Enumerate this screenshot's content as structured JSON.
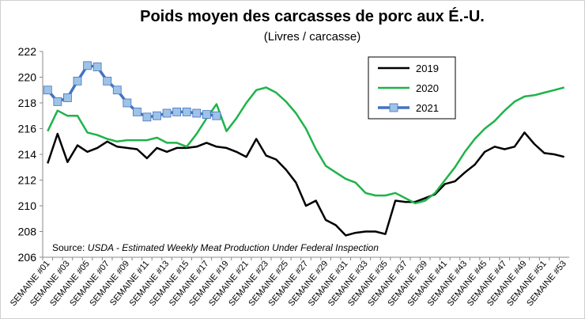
{
  "chart_data": {
    "type": "line",
    "title": "Poids moyen des carcasses de porc aux É.-U.",
    "subtitle": "(Livres / carcasse)",
    "source_label": "Source:",
    "source": "USDA - Estimated Weekly Meat Production Under Federal Inspection",
    "categories": [
      "SEMAINE #01",
      null,
      "SEMAINE #03",
      null,
      "SEMAINE #05",
      null,
      "SEMAINE #07",
      null,
      "SEMAINE #09",
      null,
      "SEMAINE #11",
      null,
      "SEMAINE #13",
      null,
      "SEMAINE #15",
      null,
      "SEMAINE #17",
      null,
      "SEMAINE #19",
      null,
      "SEMAINE #21",
      null,
      "SEMAINE #23",
      null,
      "SEMAINE #25",
      null,
      "SEMAINE #27",
      null,
      "SEMAINE #29",
      null,
      "SEMAINE #31",
      null,
      "SEMAINE #33",
      null,
      "SEMAINE #35",
      null,
      "SEMAINE #37",
      null,
      "SEMAINE #39",
      null,
      "SEMAINE #41",
      null,
      "SEMAINE #43",
      null,
      "SEMAINE #45",
      null,
      "SEMAINE #47",
      null,
      "SEMAINE #49",
      null,
      "SEMAINE #51",
      null,
      "SEMAINE #53"
    ],
    "series": [
      {
        "name": "2019",
        "color": "#000000",
        "marker": false,
        "values": [
          213.3,
          215.6,
          213.4,
          214.7,
          214.2,
          214.5,
          215.0,
          214.6,
          214.5,
          214.4,
          213.7,
          214.5,
          214.2,
          214.5,
          214.5,
          214.6,
          214.9,
          214.6,
          214.5,
          214.2,
          213.8,
          215.2,
          213.9,
          213.6,
          212.8,
          211.8,
          210.0,
          210.4,
          208.9,
          208.5,
          207.7,
          207.9,
          208.0,
          208.0,
          207.8,
          210.4,
          210.3,
          210.3,
          210.6,
          210.9,
          211.7,
          211.9,
          212.6,
          213.2,
          214.2,
          214.6,
          214.4,
          214.6,
          215.7,
          214.8,
          214.1,
          214.0,
          213.8
        ]
      },
      {
        "name": "2020",
        "color": "#1fb34a",
        "marker": false,
        "values": [
          215.8,
          217.4,
          217.0,
          217.0,
          215.7,
          215.5,
          215.2,
          215.0,
          215.1,
          215.1,
          215.1,
          215.3,
          214.9,
          214.9,
          214.6,
          215.6,
          216.8,
          217.9,
          215.8,
          216.8,
          218.0,
          219.0,
          219.2,
          218.8,
          218.1,
          217.2,
          216.0,
          214.4,
          213.1,
          212.6,
          212.1,
          211.8,
          211.0,
          210.8,
          210.8,
          211.0,
          210.6,
          210.2,
          210.4,
          211.0,
          212.0,
          213.0,
          214.2,
          215.2,
          216.0,
          216.6,
          217.4,
          218.1,
          218.5,
          218.6,
          218.8,
          219.0,
          219.2
        ]
      },
      {
        "name": "2021",
        "color": "#4472c4",
        "marker": true,
        "marker_color": "#9dc3e6",
        "values": [
          219.0,
          218.1,
          218.4,
          219.7,
          220.9,
          220.8,
          219.7,
          219.0,
          218.0,
          217.3,
          216.9,
          217.0,
          217.2,
          217.3,
          217.3,
          217.2,
          217.1,
          217.0,
          null,
          null,
          null,
          null,
          null,
          null,
          null,
          null,
          null,
          null,
          null,
          null,
          null,
          null,
          null,
          null,
          null,
          null,
          null,
          null,
          null,
          null,
          null,
          null,
          null,
          null,
          null,
          null,
          null,
          null,
          null,
          null,
          null,
          null,
          null
        ]
      }
    ],
    "ylim": [
      206,
      222
    ],
    "yticks": [
      206,
      208,
      210,
      212,
      214,
      216,
      218,
      220,
      222
    ],
    "grid": false
  }
}
